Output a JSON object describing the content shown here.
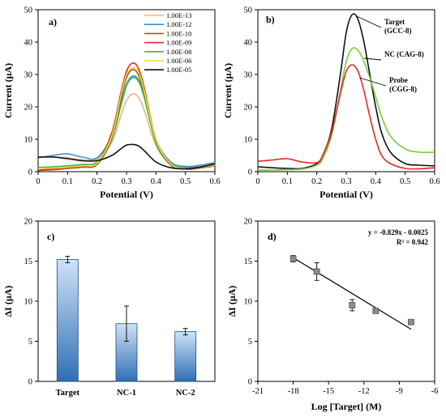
{
  "chart_data": [
    {
      "type": "line",
      "panel_label": "a)",
      "xlabel": "Potential (V)",
      "ylabel": "Current (µA)",
      "xlim": [
        0,
        0.6
      ],
      "ylim": [
        0,
        50
      ],
      "xticks": [
        "0",
        "0.1",
        "0.2",
        "0.3",
        "0.4",
        "0.5",
        "0.6"
      ],
      "yticks": [
        "0",
        "10",
        "20",
        "30",
        "40",
        "50"
      ],
      "legend_position": "top-right",
      "series": [
        {
          "name": "1.00E-13",
          "color": "#f2b48a",
          "x": [
            0,
            0.05,
            0.1,
            0.15,
            0.2,
            0.25,
            0.28,
            0.3,
            0.32,
            0.34,
            0.36,
            0.4,
            0.45,
            0.5,
            0.55,
            0.6
          ],
          "values": [
            4.5,
            4.6,
            4.3,
            3.6,
            3.9,
            9,
            17,
            22,
            24,
            23,
            19,
            8,
            2.5,
            1.6,
            1.8,
            2.4
          ]
        },
        {
          "name": "1.00E-12",
          "color": "#3a8fd0",
          "x": [
            0,
            0.05,
            0.1,
            0.15,
            0.2,
            0.25,
            0.28,
            0.3,
            0.32,
            0.34,
            0.36,
            0.4,
            0.45,
            0.5,
            0.55,
            0.6
          ],
          "values": [
            4.3,
            5,
            5.5,
            4.5,
            4.3,
            11,
            21,
            27,
            29.5,
            28.5,
            24,
            10,
            3,
            1.6,
            2,
            2.8
          ]
        },
        {
          "name": "1.00E-10",
          "color": "#9a5a28",
          "x": [
            0,
            0.05,
            0.1,
            0.15,
            0.2,
            0.25,
            0.28,
            0.3,
            0.32,
            0.34,
            0.36,
            0.4,
            0.45,
            0.5,
            0.55,
            0.6
          ],
          "values": [
            0.4,
            0.6,
            1,
            1.4,
            2.2,
            10,
            22,
            29,
            31.5,
            30,
            24,
            9,
            2,
            0.8,
            1.1,
            1.8
          ]
        },
        {
          "name": "1.00E-09",
          "color": "#e52a2a",
          "x": [
            0,
            0.05,
            0.1,
            0.15,
            0.2,
            0.25,
            0.28,
            0.3,
            0.32,
            0.34,
            0.36,
            0.4,
            0.45,
            0.5,
            0.55,
            0.6
          ],
          "values": [
            0.5,
            0.8,
            1.2,
            1.6,
            2.6,
            12,
            24,
            31,
            33.5,
            32,
            26,
            10,
            2.2,
            0.9,
            1.2,
            2
          ]
        },
        {
          "name": "1.00E-08",
          "color": "#3ab54a",
          "x": [
            0,
            0.05,
            0.1,
            0.15,
            0.2,
            0.25,
            0.28,
            0.3,
            0.32,
            0.34,
            0.36,
            0.4,
            0.45,
            0.5,
            0.55,
            0.6
          ],
          "values": [
            1.3,
            1.5,
            1.8,
            2.2,
            3,
            10,
            20,
            26.5,
            29,
            28,
            23,
            9,
            2.5,
            1.2,
            1.5,
            2.2
          ]
        },
        {
          "name": "1.00E-06",
          "color": "#e8e032",
          "x": [
            0,
            0.05,
            0.1,
            0.15,
            0.2,
            0.25,
            0.28,
            0.3,
            0.32,
            0.34,
            0.36,
            0.4,
            0.45,
            0.5,
            0.55,
            0.6
          ],
          "values": [
            1,
            1.1,
            1.4,
            1.8,
            2.6,
            11,
            23,
            30,
            32,
            31,
            25,
            10,
            2.4,
            1,
            1.3,
            2
          ]
        },
        {
          "name": "1.00E-05",
          "color": "#111111",
          "x": [
            0,
            0.05,
            0.1,
            0.15,
            0.2,
            0.25,
            0.28,
            0.3,
            0.32,
            0.34,
            0.36,
            0.4,
            0.45,
            0.5,
            0.55,
            0.6
          ],
          "values": [
            4.5,
            4.5,
            4,
            3.4,
            3.4,
            5,
            7,
            8.2,
            8.4,
            8,
            6.5,
            3,
            1.2,
            0.9,
            1.4,
            2.4
          ]
        }
      ]
    },
    {
      "type": "line",
      "panel_label": "b)",
      "xlabel": "Potential (V)",
      "ylabel": "Current (µA)",
      "xlim": [
        0,
        0.6
      ],
      "ylim": [
        0,
        50
      ],
      "xticks": [
        "0",
        "0.1",
        "0.2",
        "0.3",
        "0.4",
        "0.5",
        "0.6"
      ],
      "yticks": [
        "0",
        "10",
        "20",
        "30",
        "40",
        "50"
      ],
      "annotations": [
        {
          "line1": "Target",
          "line2": "(GCC-8)",
          "series": 0
        },
        {
          "line1": "NC (CAG-8)",
          "line2": "",
          "series": 1
        },
        {
          "line1": "Probe",
          "line2": "(CGG-8)",
          "series": 2
        }
      ],
      "series": [
        {
          "color": "#111111",
          "x": [
            0,
            0.05,
            0.1,
            0.15,
            0.2,
            0.22,
            0.25,
            0.28,
            0.3,
            0.32,
            0.34,
            0.36,
            0.38,
            0.4,
            0.42,
            0.45,
            0.5,
            0.55,
            0.6
          ],
          "values": [
            1.5,
            1.2,
            1,
            1,
            2.5,
            5,
            13,
            30,
            43,
            48.5,
            47,
            40,
            30,
            20,
            12,
            6,
            2.5,
            2,
            1.8
          ]
        },
        {
          "color": "#7ccc3e",
          "x": [
            0,
            0.05,
            0.1,
            0.15,
            0.2,
            0.22,
            0.25,
            0.28,
            0.3,
            0.32,
            0.34,
            0.36,
            0.38,
            0.4,
            0.42,
            0.45,
            0.5,
            0.55,
            0.6
          ],
          "values": [
            0.5,
            0.5,
            0.6,
            0.8,
            2,
            4,
            11,
            25,
            34,
            38,
            37.5,
            34,
            29,
            23,
            17,
            11,
            7,
            6,
            6
          ]
        },
        {
          "color": "#e52a2a",
          "x": [
            0,
            0.05,
            0.1,
            0.15,
            0.2,
            0.22,
            0.25,
            0.28,
            0.3,
            0.32,
            0.34,
            0.36,
            0.38,
            0.4,
            0.42,
            0.45,
            0.5,
            0.55,
            0.6
          ],
          "values": [
            3.2,
            3.6,
            4,
            3,
            2.8,
            5,
            12,
            24,
            31,
            33,
            31,
            25,
            17,
            10,
            5,
            2.5,
            1,
            0.9,
            1.2
          ]
        }
      ]
    },
    {
      "type": "bar",
      "panel_label": "c)",
      "ylabel": "ΔI (µA)",
      "ylim": [
        0,
        20
      ],
      "yticks": [
        "0",
        "5",
        "10",
        "15",
        "20"
      ],
      "categories": [
        "Target",
        "NC-1",
        "NC-2"
      ],
      "values": [
        15.2,
        7.2,
        6.2
      ],
      "errors": [
        0.4,
        2.2,
        0.4
      ]
    },
    {
      "type": "scatter",
      "panel_label": "d)",
      "xlabel": "Log [Target] (M)",
      "ylabel": "ΔI (µA)",
      "xlim": [
        -21,
        -6
      ],
      "ylim": [
        0,
        20
      ],
      "xticks": [
        "-21",
        "-18",
        "-15",
        "-12",
        "-9",
        "-6"
      ],
      "yticks": [
        "0",
        "5",
        "10",
        "15",
        "20"
      ],
      "equation": "y = -0.829x - 0.0025",
      "r_squared": "R² = 0.942",
      "x": [
        -18,
        -16,
        -13,
        -11,
        -8
      ],
      "values": [
        15.3,
        13.7,
        9.5,
        8.8,
        7.4
      ],
      "errors": [
        0.4,
        1.1,
        0.7,
        0.3,
        0.3
      ],
      "trendline": {
        "x": [
          -18.2,
          -8
        ],
        "values": [
          15.6,
          6.5
        ]
      }
    }
  ]
}
